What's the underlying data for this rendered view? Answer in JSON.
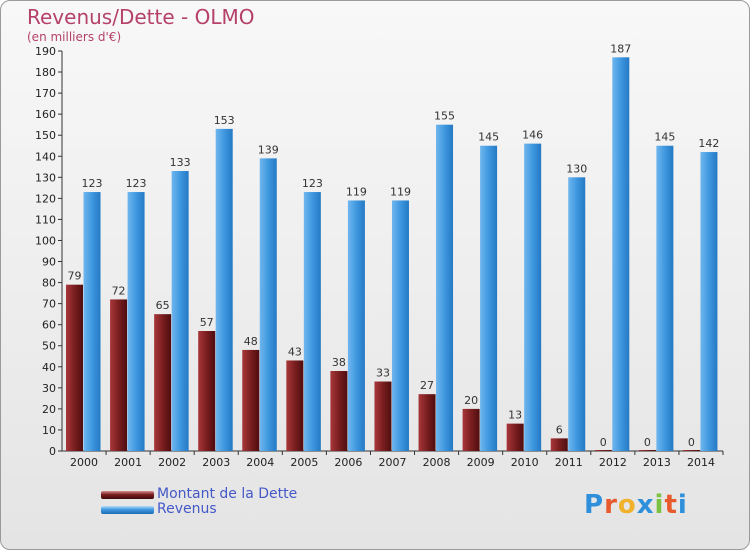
{
  "chart_data": {
    "type": "bar",
    "title": "Revenus/Dette - OLMO",
    "subtitle": "(en milliers d'€)",
    "categories": [
      "2000",
      "2001",
      "2002",
      "2003",
      "2004",
      "2005",
      "2006",
      "2007",
      "2008",
      "2009",
      "2010",
      "2011",
      "2012",
      "2013",
      "2014"
    ],
    "series": [
      {
        "name": "Montant de la Dette",
        "color": "#7a1e20",
        "values": [
          79,
          72,
          65,
          57,
          48,
          43,
          38,
          33,
          27,
          20,
          13,
          6,
          0,
          0,
          0
        ]
      },
      {
        "name": "Revenus",
        "color": "#3f98df",
        "values": [
          123,
          123,
          133,
          153,
          139,
          123,
          119,
          119,
          155,
          145,
          146,
          130,
          187,
          145,
          142
        ]
      }
    ],
    "ylim": [
      0,
      190
    ],
    "ytick_step": 10,
    "grid": false,
    "legend": "bottom-left"
  },
  "logo": {
    "text": "Proxiti",
    "colors": [
      "#2e8fdb",
      "#e8592d",
      "#f0b12b",
      "#2e8fdb",
      "#7cc242",
      "#e8592d",
      "#2e8fdb"
    ]
  }
}
